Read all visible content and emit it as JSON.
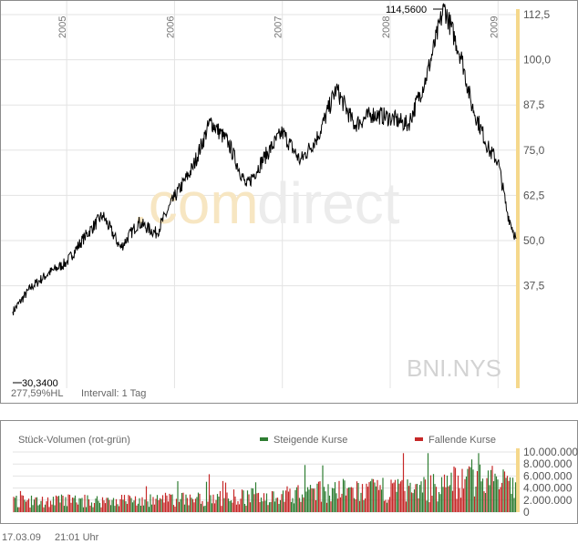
{
  "watermark": {
    "part1": ".com",
    "part2": "direct"
  },
  "ticker": "BNI.NYS",
  "footer": {
    "date": "17.03.09",
    "time": "21:01 Uhr"
  },
  "colors": {
    "price_line": "#000000",
    "rising": "#2e7d32",
    "falling": "#c62828",
    "accent_axis": "#f5d88c",
    "grid": "#e3e3e3",
    "frame": "#8c8c8c"
  },
  "chart_data": [
    {
      "type": "line",
      "name": "price",
      "ylim": [
        27.5,
        115
      ],
      "y_ticks": [
        "112,5",
        "100,0",
        "87,5",
        "75,0",
        "62,5",
        "50,0",
        "37,5"
      ],
      "y_tick_values": [
        112.5,
        100,
        87.5,
        75,
        62.5,
        50,
        37.5
      ],
      "years": [
        "2005",
        "2006",
        "2007",
        "2008",
        "2009"
      ],
      "x": [
        "2004-07",
        "2004-09",
        "2004-11",
        "2005-01",
        "2005-03",
        "2005-05",
        "2005-07",
        "2005-09",
        "2005-11",
        "2006-01",
        "2006-03",
        "2006-05",
        "2006-07",
        "2006-09",
        "2006-11",
        "2007-01",
        "2007-03",
        "2007-05",
        "2007-07",
        "2007-09",
        "2007-11",
        "2008-01",
        "2008-03",
        "2008-05",
        "2008-07",
        "2008-09",
        "2008-10",
        "2008-12",
        "2009-01",
        "2009-02",
        "2009-03"
      ],
      "y": [
        30.34,
        37,
        41,
        44,
        51,
        57,
        48,
        55,
        52,
        62,
        70,
        83,
        77,
        65,
        73,
        80,
        72,
        79,
        92,
        82,
        85,
        84,
        82,
        95,
        114.56,
        100,
        88,
        75,
        72,
        58,
        50.5
      ],
      "high_label": "114,5600",
      "low_label": "30,3400",
      "stats": "277,59%HL",
      "interval": "Intervall: 1 Tag"
    },
    {
      "type": "bar",
      "name": "volume",
      "title": "Stück-Volumen (rot-grün)",
      "legend": [
        "Steigende Kurse",
        "Fallende Kurse"
      ],
      "ylim": [
        0,
        10000000
      ],
      "y_ticks": [
        "10.000.000",
        "8.000.000",
        "6.000.000",
        "4.000.000",
        "2.000.000",
        "0"
      ],
      "y_tick_values": [
        10000000,
        8000000,
        6000000,
        4000000,
        2000000,
        0
      ],
      "x": [
        "2004-07",
        "2004-10",
        "2005-01",
        "2005-04",
        "2005-07",
        "2005-10",
        "2006-01",
        "2006-04",
        "2006-07",
        "2006-10",
        "2007-01",
        "2007-04",
        "2007-07",
        "2007-10",
        "2008-01",
        "2008-04",
        "2008-07",
        "2008-10",
        "2009-01",
        "2009-03"
      ],
      "values": [
        2200000,
        2000000,
        2300000,
        2100000,
        2400000,
        2200000,
        2500000,
        2600000,
        2800000,
        3000000,
        3200000,
        3600000,
        4200000,
        4000000,
        4500000,
        4300000,
        5200000,
        7000000,
        6000000,
        4500000
      ]
    }
  ]
}
